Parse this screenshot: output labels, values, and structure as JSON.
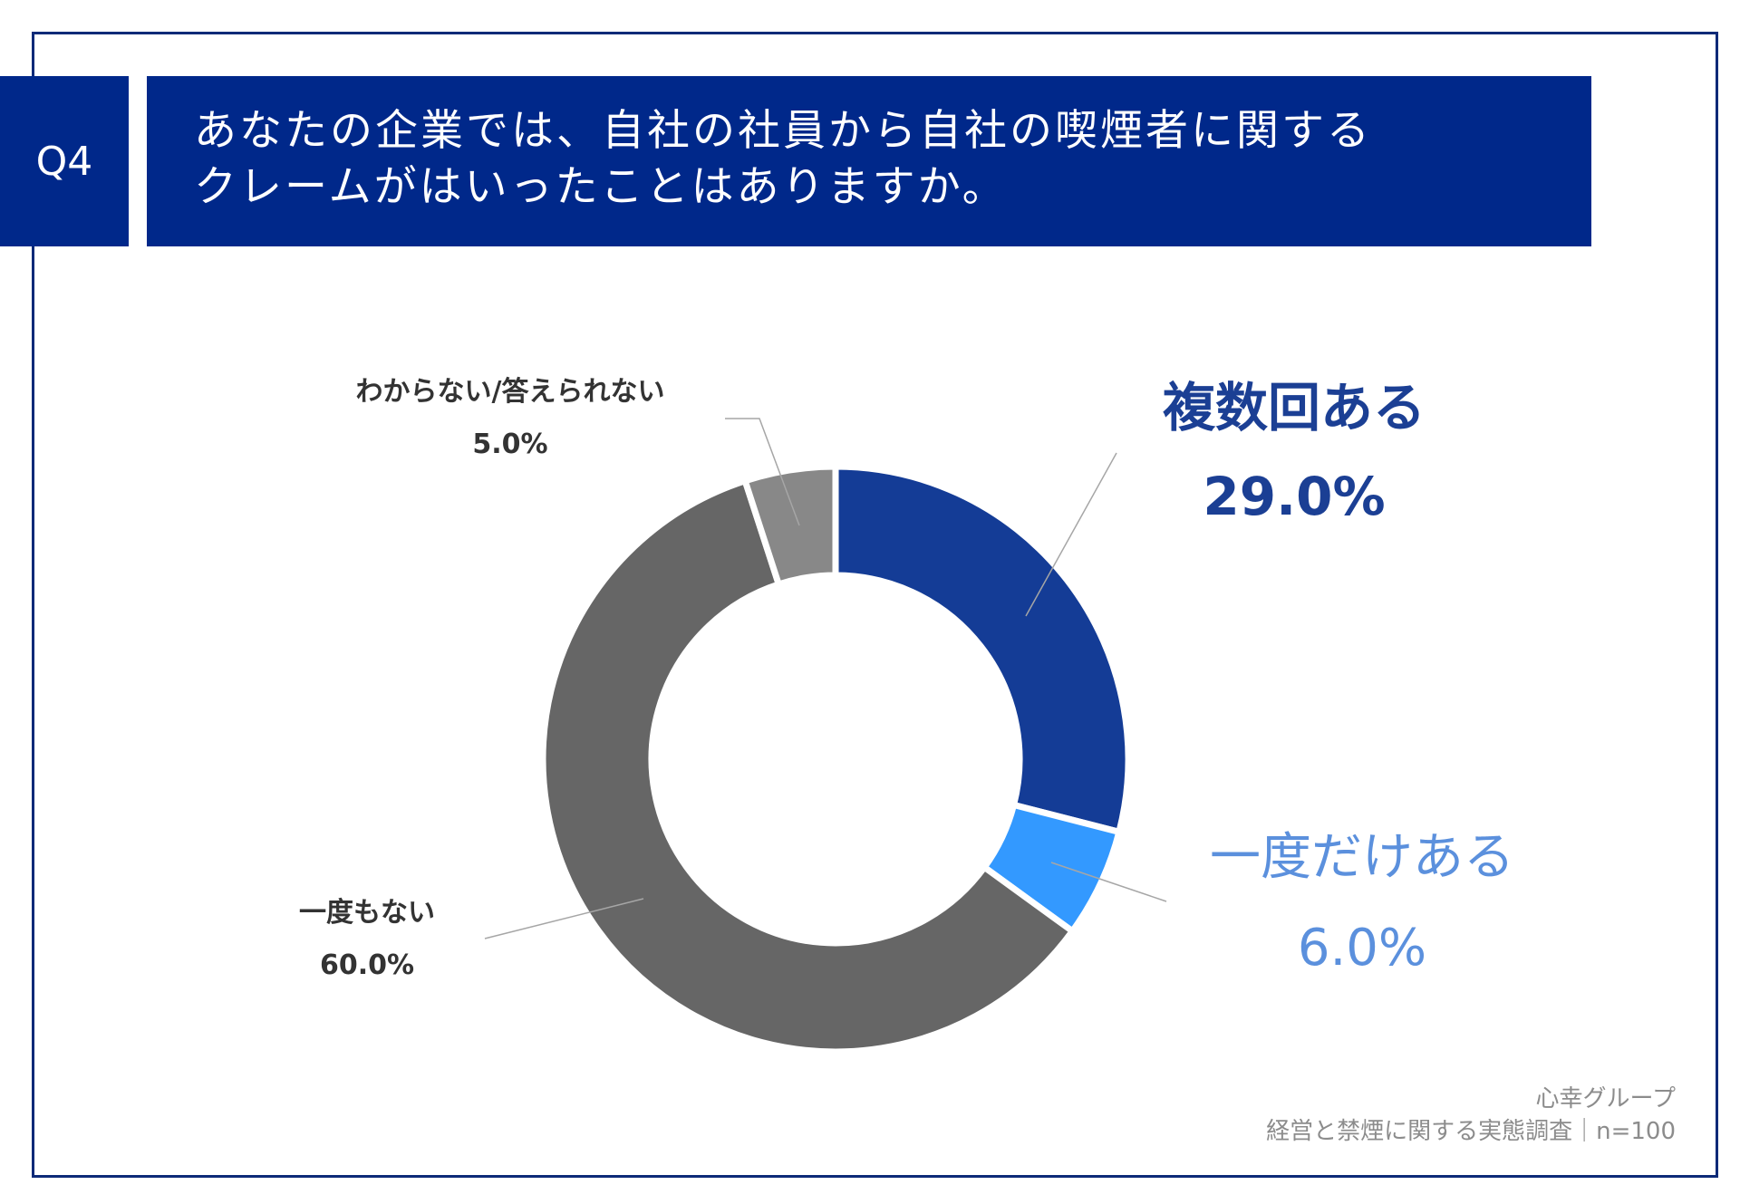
{
  "header": {
    "question_number": "Q4",
    "question_line1": "あなたの企業では、自社の社員から自社の喫煙者に関する",
    "question_line2": "クレームがはいったことはありますか。"
  },
  "source": {
    "organization": "心幸グループ",
    "survey": "経営と禁煙に関する実態調査｜n=100"
  },
  "colors": {
    "header_bg": "#00288a",
    "frame": "#0d2a78"
  },
  "chart_data": {
    "type": "pie",
    "donut": true,
    "slices": [
      {
        "label": "複数回ある",
        "value": 29.0,
        "display": "29.0%",
        "color": "#143c96",
        "label_color": "#1b3f94"
      },
      {
        "label": "一度だけある",
        "value": 6.0,
        "display": "6.0%",
        "color": "#3399ff",
        "label_color": "#5b90dd"
      },
      {
        "label": "一度もない",
        "value": 60.0,
        "display": "60.0%",
        "color": "#666666",
        "label_color": "#333333"
      },
      {
        "label": "わからない/答えられない",
        "value": 5.0,
        "display": "5.0%",
        "color": "#888888",
        "label_color": "#333333"
      }
    ],
    "start": "top",
    "direction": "clockwise"
  }
}
